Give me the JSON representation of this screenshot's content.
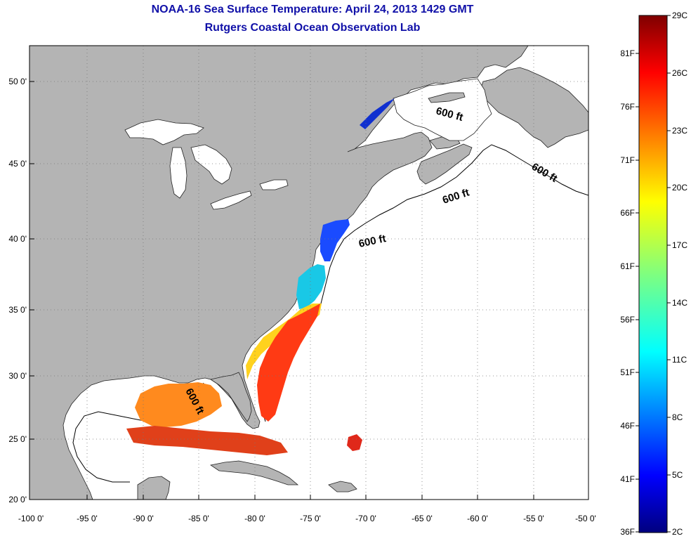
{
  "title": "NOAA-16 Sea Surface Temperature:  April 24, 2013 1429 GMT",
  "subtitle": "Rutgers Coastal Ocean Observation Lab",
  "lat_ticks": [
    "50 0'",
    "45 0'",
    "40 0'",
    "35 0'",
    "30 0'",
    "25 0'",
    "20 0'"
  ],
  "lon_ticks": [
    "-100 0'",
    "-95 0'",
    "-90 0'",
    "-85 0'",
    "-80 0'",
    "-75 0'",
    "-70 0'",
    "-65 0'",
    "-60 0'",
    "-55 0'",
    "-50 0'"
  ],
  "depth_label": "600 ft",
  "colorbar": {
    "fahrenheit": [
      "81F",
      "76F",
      "71F",
      "66F",
      "61F",
      "56F",
      "51F",
      "46F",
      "41F",
      "36F"
    ],
    "celsius": [
      "29C",
      "26C",
      "23C",
      "20C",
      "17C",
      "14C",
      "11C",
      "8C",
      "5C",
      "2C"
    ]
  },
  "colors": {
    "title": "#1010a8",
    "land": "#b4b4b4",
    "ocean": "#ffffff"
  }
}
